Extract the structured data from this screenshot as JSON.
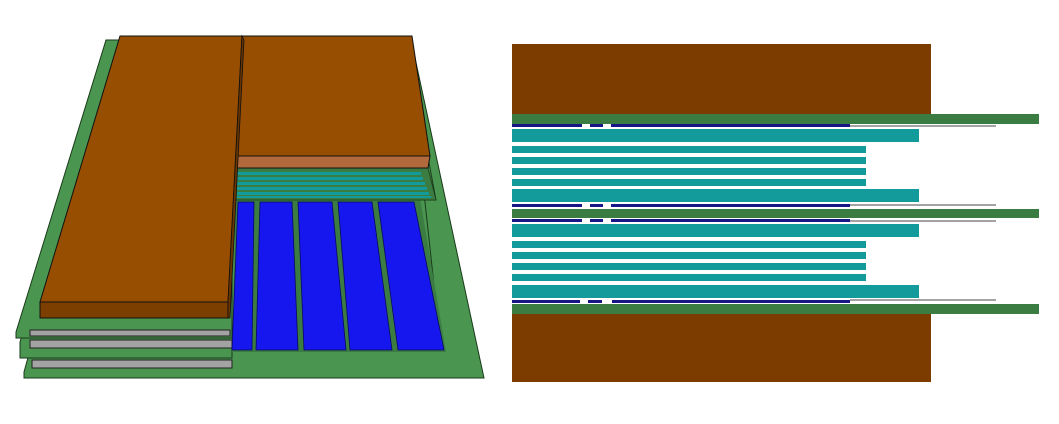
{
  "figure": {
    "panels": [
      {
        "name": "isometric-view",
        "kind": "3d layered stack"
      },
      {
        "name": "cross-section-view",
        "kind": "2d side section"
      }
    ]
  },
  "colors": {
    "copper_top": "#984e00",
    "copper_front": "#7d3f00",
    "copper_side": "#6a3500",
    "copper_light": "#b26a3c",
    "pcb_green": "#4a9650",
    "pcb_green_dark": "#3b7c42",
    "grey_layer": "#a3a3a3",
    "teal": "#139b9b",
    "blue": "#1616ee",
    "navy": "#161686",
    "section_copper": "#7c3c00",
    "outline": "#111111"
  }
}
